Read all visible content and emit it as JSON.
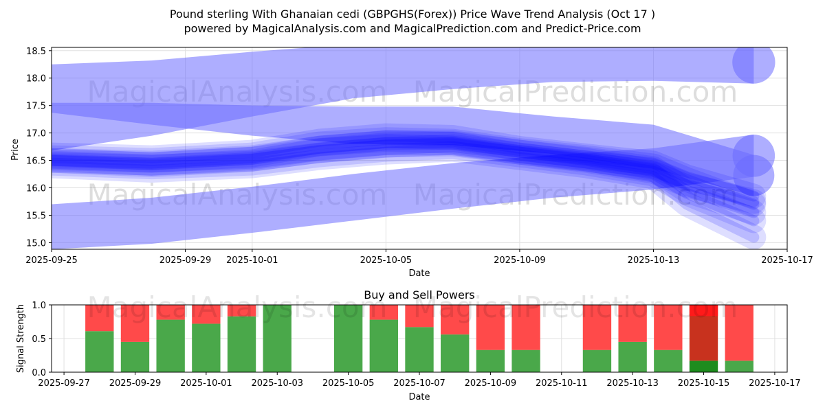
{
  "title_line1": "Pound sterling With Ghanaian cedi (GBPGHS(Forex)) Price Wave Trend Analysis (Oct 17 )",
  "title_line2": "powered by MagicalAnalysis.com and MagicalPrediction.com and Predict-Price.com",
  "watermarks": [
    "MagicalAnalysis.com",
    "MagicalPrediction.com"
  ],
  "colors": {
    "wave": "#0000ff",
    "wide_band": "#6b6bff",
    "buy": "#4aa84a",
    "sell": "#ff4a4a",
    "buy_dark": "#1e8c1e",
    "sell_dark": "#c8321e",
    "sell_bright": "#ff1a1a"
  },
  "chart_data": [
    {
      "type": "area",
      "title": "",
      "xlabel": "Date",
      "ylabel": "Price",
      "x_ticks": [
        "2025-09-25",
        "2025-09-29",
        "2025-10-01",
        "2025-10-05",
        "2025-10-09",
        "2025-10-13",
        "2025-10-17"
      ],
      "y_ticks": [
        "15.0",
        "15.5",
        "16.0",
        "16.5",
        "17.0",
        "17.5",
        "18.0",
        "18.5"
      ],
      "ylim": [
        14.88,
        18.56
      ],
      "xlim": [
        "2025-09-25",
        "2025-10-17"
      ],
      "grid": true,
      "wide_bands": [
        {
          "x": [
            "2025-09-25",
            "2025-09-28",
            "2025-10-01",
            "2025-10-04",
            "2025-10-07",
            "2025-10-10",
            "2025-10-13",
            "2025-10-16"
          ],
          "upper": [
            18.25,
            18.32,
            18.48,
            18.62,
            18.68,
            18.72,
            18.7,
            18.68
          ],
          "lower": [
            16.68,
            16.95,
            17.3,
            17.63,
            17.8,
            17.93,
            17.95,
            17.9
          ]
        },
        {
          "x": [
            "2025-09-25",
            "2025-09-28",
            "2025-10-01",
            "2025-10-04",
            "2025-10-07",
            "2025-10-10",
            "2025-10-13",
            "2025-10-16"
          ],
          "upper": [
            17.55,
            17.55,
            17.5,
            17.48,
            17.48,
            17.3,
            17.15,
            16.6
          ],
          "lower": [
            17.37,
            17.15,
            16.95,
            16.8,
            16.78,
            16.62,
            16.35,
            15.85
          ]
        },
        {
          "x": [
            "2025-09-25",
            "2025-09-28",
            "2025-10-01",
            "2025-10-04",
            "2025-10-07",
            "2025-10-10",
            "2025-10-13",
            "2025-10-16"
          ],
          "upper": [
            15.7,
            15.82,
            16.02,
            16.25,
            16.45,
            16.6,
            16.72,
            16.97
          ],
          "lower": [
            14.88,
            14.98,
            15.18,
            15.4,
            15.62,
            15.82,
            15.97,
            16.2
          ]
        }
      ],
      "waves": [
        {
          "x": [
            "2025-09-25",
            "2025-09-28",
            "2025-10-01",
            "2025-10-03",
            "2025-10-05",
            "2025-10-07",
            "2025-10-09",
            "2025-10-11",
            "2025-10-13",
            "2025-10-14",
            "2025-10-16"
          ],
          "y": [
            16.5,
            16.42,
            16.52,
            16.68,
            16.78,
            16.8,
            16.65,
            16.5,
            16.3,
            16.05,
            15.75
          ]
        },
        {
          "x": [
            "2025-09-25",
            "2025-09-28",
            "2025-10-01",
            "2025-10-03",
            "2025-10-05",
            "2025-10-07",
            "2025-10-09",
            "2025-10-11",
            "2025-10-13",
            "2025-10-14",
            "2025-10-16"
          ],
          "y": [
            16.55,
            16.5,
            16.6,
            16.8,
            16.88,
            16.85,
            16.68,
            16.55,
            16.4,
            16.15,
            15.7
          ]
        },
        {
          "x": [
            "2025-09-25",
            "2025-09-28",
            "2025-10-01",
            "2025-10-03",
            "2025-10-05",
            "2025-10-07",
            "2025-10-09",
            "2025-10-11",
            "2025-10-13",
            "2025-10-14",
            "2025-10-16"
          ],
          "y": [
            16.45,
            16.38,
            16.45,
            16.6,
            16.7,
            16.75,
            16.6,
            16.45,
            16.25,
            15.9,
            15.4
          ]
        },
        {
          "x": [
            "2025-09-25",
            "2025-09-28",
            "2025-10-01",
            "2025-10-03",
            "2025-10-05",
            "2025-10-07",
            "2025-10-09",
            "2025-10-11",
            "2025-10-13",
            "2025-10-14",
            "2025-10-16"
          ],
          "y": [
            16.6,
            16.55,
            16.65,
            16.85,
            16.95,
            16.92,
            16.72,
            16.58,
            16.45,
            16.2,
            15.85
          ]
        },
        {
          "x": [
            "2025-09-25",
            "2025-09-28",
            "2025-10-01",
            "2025-10-03",
            "2025-10-05",
            "2025-10-07",
            "2025-10-09",
            "2025-10-11",
            "2025-10-13",
            "2025-10-14",
            "2025-10-16"
          ],
          "y": [
            16.4,
            16.32,
            16.4,
            16.55,
            16.65,
            16.7,
            16.55,
            16.4,
            16.2,
            15.7,
            15.1
          ]
        },
        {
          "x": [
            "2025-09-25",
            "2025-09-28",
            "2025-10-01",
            "2025-10-03",
            "2025-10-05",
            "2025-10-07",
            "2025-10-09",
            "2025-10-11",
            "2025-10-13",
            "2025-10-14",
            "2025-10-16"
          ],
          "y": [
            16.5,
            16.45,
            16.55,
            16.72,
            16.82,
            16.82,
            16.65,
            16.52,
            16.35,
            15.95,
            15.55
          ]
        }
      ]
    },
    {
      "type": "bar",
      "title": "Buy and Sell Powers",
      "xlabel": "Date",
      "ylabel": "Signal Strength",
      "ylim": [
        0,
        1.0
      ],
      "y_ticks": [
        "0.0",
        "0.5",
        "1.0"
      ],
      "x_ticks": [
        "2025-09-27",
        "2025-09-29",
        "2025-10-01",
        "2025-10-03",
        "2025-10-05",
        "2025-10-07",
        "2025-10-09",
        "2025-10-11",
        "2025-10-13",
        "2025-10-15",
        "2025-10-17"
      ],
      "xlim": [
        "2025-09-27",
        "2025-10-17"
      ],
      "grid": true,
      "categories": [
        "2025-09-28",
        "2025-09-29",
        "2025-09-30",
        "2025-10-01",
        "2025-10-02",
        "2025-10-03",
        "2025-10-05",
        "2025-10-06",
        "2025-10-07",
        "2025-10-08",
        "2025-10-09",
        "2025-10-10",
        "2025-10-12",
        "2025-10-13",
        "2025-10-14",
        "2025-10-15",
        "2025-10-16"
      ],
      "series": [
        {
          "name": "",
          "values": [
            0.61,
            0.45,
            0.78,
            0.72,
            0.83,
            1.0,
            1.0,
            0.78,
            0.67,
            0.56,
            0.33,
            0.33,
            0.33,
            0.45,
            0.33,
            0.17,
            0.17
          ]
        },
        {
          "name": "",
          "values": [
            0.39,
            0.55,
            0.22,
            0.28,
            0.17,
            0.0,
            0.0,
            0.22,
            0.33,
            0.44,
            0.67,
            0.67,
            0.67,
            0.55,
            0.67,
            0.83,
            0.83
          ]
        }
      ]
    }
  ]
}
